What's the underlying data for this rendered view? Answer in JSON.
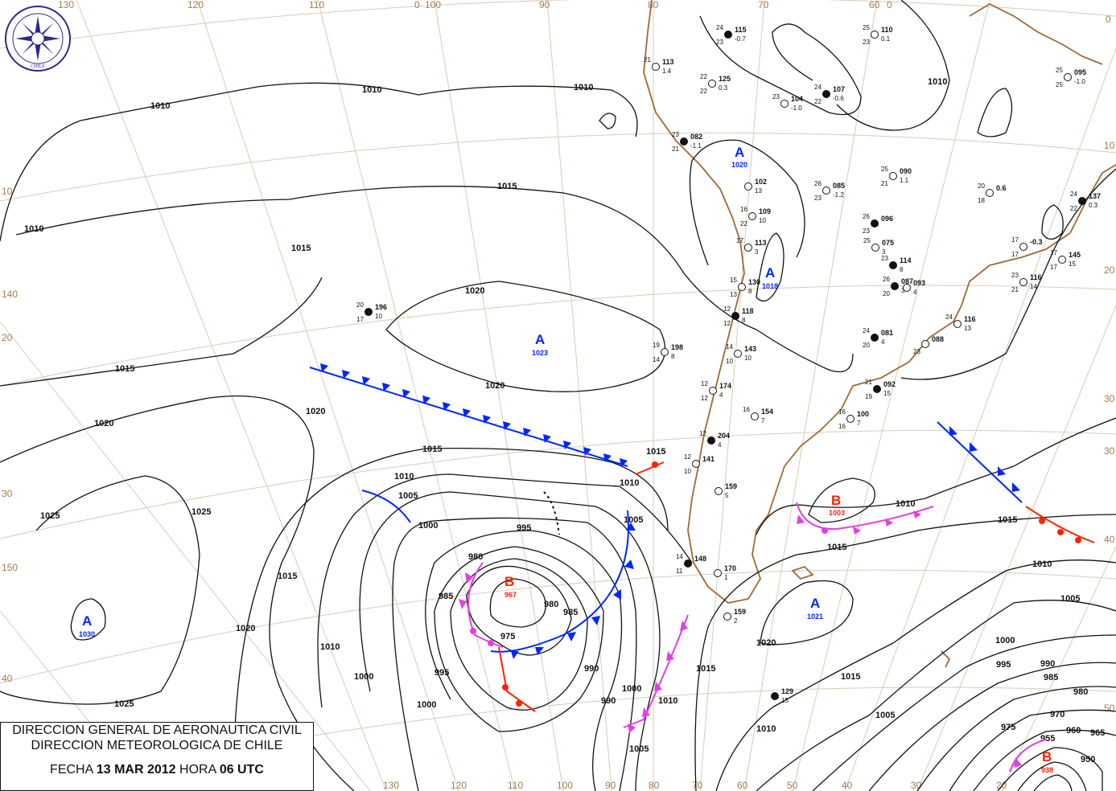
{
  "title_box": {
    "line1": "DIRECCION GENERAL DE AERONAUTICA CIVIL",
    "line2": "DIRECCION METEOROLOGICA DE CHILE",
    "date_label": "FECHA",
    "date": "13 MAR 2012",
    "hour_label": "HORA",
    "hour": "06 UTC"
  },
  "logo": {
    "text_top": "DIRECCION METEOROLOGICA",
    "text_bottom": "CHILE"
  },
  "colors": {
    "high": "#0026ff",
    "low": "#ff2200",
    "isobar": "#111111",
    "coast": "#9a6a3a",
    "grid": "#d8cbb8",
    "cold_front": "#0026ff",
    "warm_front": "#ff2200",
    "occluded_front": "#e040e0"
  },
  "grid_labels": {
    "top": [
      "130",
      "120",
      "110",
      "0",
      "100",
      "90",
      "80",
      "70",
      "60",
      "0"
    ],
    "bottom": [
      "130",
      "120",
      "110",
      "100",
      "90",
      "80",
      "70",
      "60",
      "50",
      "40",
      "30",
      "20"
    ],
    "left": [
      "10",
      "140",
      "20",
      "30",
      "150",
      "40"
    ],
    "right": [
      "0",
      "10",
      "20",
      "30",
      "30",
      "40",
      "50"
    ]
  },
  "pressure_centers": [
    {
      "type": "A",
      "value": "1023"
    },
    {
      "type": "A",
      "value": "1030"
    },
    {
      "type": "A",
      "value": "1020"
    },
    {
      "type": "A",
      "value": "1018"
    },
    {
      "type": "A",
      "value": "1021"
    },
    {
      "type": "B",
      "value": "967"
    },
    {
      "type": "B",
      "value": "1003"
    },
    {
      "type": "B",
      "value": "938"
    }
  ],
  "isobar_labels": [
    "1010",
    "1010",
    "1010",
    "1010",
    "1015",
    "1015",
    "1020",
    "1020",
    "1015",
    "1020",
    "1020",
    "1025",
    "1025",
    "1025",
    "1015",
    "1010",
    "1005",
    "1000",
    "995",
    "990",
    "985",
    "980",
    "975",
    "985",
    "980",
    "1000",
    "1005",
    "1010",
    "1015",
    "1020",
    "1010",
    "1015",
    "1010",
    "1005",
    "1000",
    "995",
    "990",
    "985",
    "980",
    "975",
    "970",
    "965",
    "960",
    "955",
    "950",
    "1005",
    "1000",
    "1015",
    "1010",
    "1010",
    "1015",
    "1010",
    "1015",
    "1020",
    "1010",
    "1015",
    "1005",
    "1000",
    "995",
    "990"
  ],
  "stations": [
    {
      "id": "196",
      "t": "20",
      "td": "17",
      "p": "10"
    },
    {
      "id": "198",
      "t": "19",
      "td": "14",
      "p": "8"
    },
    {
      "id": "113",
      "t": "21",
      "td": "",
      "p": "1.4"
    },
    {
      "id": "115",
      "t": "24",
      "td": "23",
      "p": "-0.7"
    },
    {
      "id": "125",
      "t": "22",
      "td": "22",
      "p": "0.3"
    },
    {
      "id": "104",
      "t": "23",
      "td": "",
      "p": "-1.0"
    },
    {
      "id": "107",
      "t": "24",
      "td": "22",
      "p": "-0.6"
    },
    {
      "id": "110",
      "t": "25",
      "td": "23",
      "p": "0.1"
    },
    {
      "id": "095",
      "t": "25",
      "td": "25",
      "p": "-1.0"
    },
    {
      "id": "082",
      "t": "23",
      "td": "21",
      "p": "-1.1"
    },
    {
      "id": "085",
      "t": "26",
      "td": "23",
      "p": "-1.2"
    },
    {
      "id": "090",
      "t": "25",
      "td": "21",
      "p": "1.1"
    },
    {
      "id": "137",
      "t": "24",
      "td": "22",
      "p": "0.3"
    },
    {
      "id": "102",
      "t": "",
      "td": "",
      "p": "13"
    },
    {
      "id": "109",
      "t": "16",
      "td": "22",
      "p": "10"
    },
    {
      "id": "096",
      "t": "26",
      "td": "23",
      "p": ""
    },
    {
      "id": "075",
      "t": "25",
      "td": "",
      "p": "3"
    },
    {
      "id": "113",
      "t": "17",
      "td": "",
      "p": "3"
    },
    {
      "id": "114",
      "t": "23",
      "td": "",
      "p": "8"
    },
    {
      "id": "145",
      "t": "17",
      "td": "17",
      "p": "15"
    },
    {
      "id": "130",
      "t": "15",
      "td": "13",
      "p": "8"
    },
    {
      "id": "087",
      "t": "26",
      "td": "20",
      "p": "3"
    },
    {
      "id": "093",
      "t": "",
      "td": "",
      "p": "4"
    },
    {
      "id": "116",
      "t": "23",
      "td": "21",
      "p": "14"
    },
    {
      "id": "118",
      "t": "12",
      "td": "12",
      "p": "8"
    },
    {
      "id": "116",
      "t": "24",
      "td": "",
      "p": "13"
    },
    {
      "id": "143",
      "t": "14",
      "td": "10",
      "p": "10"
    },
    {
      "id": "081",
      "t": "24",
      "td": "20",
      "p": "4"
    },
    {
      "id": "088",
      "t": "",
      "td": "23",
      "p": ""
    },
    {
      "id": "174",
      "t": "12",
      "td": "12",
      "p": "4"
    },
    {
      "id": "092",
      "t": "21",
      "td": "19",
      "p": "15"
    },
    {
      "id": "154",
      "t": "16",
      "td": "",
      "p": "7"
    },
    {
      "id": "100",
      "t": "16",
      "td": "16",
      "p": "7"
    },
    {
      "id": "204",
      "t": "12",
      "td": "",
      "p": "4"
    },
    {
      "id": "141",
      "t": "12",
      "td": "10",
      "p": ""
    },
    {
      "id": "159",
      "t": "",
      "td": "",
      "p": "5"
    },
    {
      "id": "148",
      "t": "14",
      "td": "11",
      "p": ""
    },
    {
      "id": "170",
      "t": "",
      "td": "",
      "p": "1"
    },
    {
      "id": "159",
      "t": "",
      "td": "",
      "p": "2"
    },
    {
      "id": "129",
      "t": "",
      "td": "",
      "p": "15"
    },
    {
      "id": "0.6",
      "t": "20",
      "td": "18",
      "p": ""
    },
    {
      "id": "-0.3",
      "t": "17",
      "td": "17",
      "p": ""
    }
  ]
}
